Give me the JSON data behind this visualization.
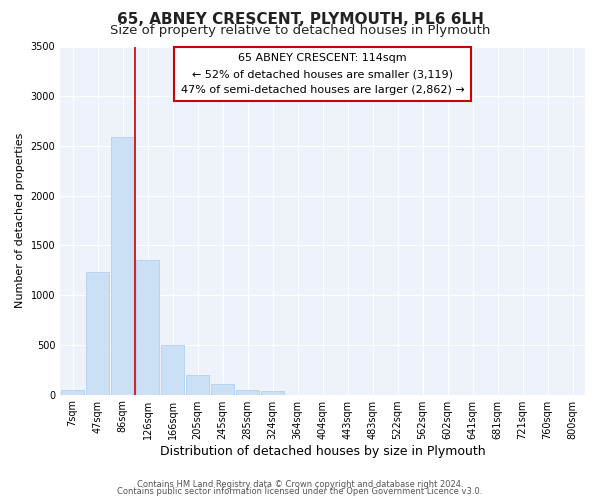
{
  "title": "65, ABNEY CRESCENT, PLYMOUTH, PL6 6LH",
  "subtitle": "Size of property relative to detached houses in Plymouth",
  "xlabel": "Distribution of detached houses by size in Plymouth",
  "ylabel": "Number of detached properties",
  "bar_labels": [
    "7sqm",
    "47sqm",
    "86sqm",
    "126sqm",
    "166sqm",
    "205sqm",
    "245sqm",
    "285sqm",
    "324sqm",
    "364sqm",
    "404sqm",
    "443sqm",
    "483sqm",
    "522sqm",
    "562sqm",
    "602sqm",
    "641sqm",
    "681sqm",
    "721sqm",
    "760sqm",
    "800sqm"
  ],
  "bar_values": [
    50,
    1230,
    2590,
    1350,
    500,
    200,
    110,
    50,
    40,
    0,
    0,
    0,
    0,
    0,
    0,
    0,
    0,
    0,
    0,
    0,
    0
  ],
  "bar_color": "#cce0f5",
  "bar_edge_color": "#aaccee",
  "vline_pos": 2.5,
  "vline_color": "#cc0000",
  "ylim": [
    0,
    3500
  ],
  "yticks": [
    0,
    500,
    1000,
    1500,
    2000,
    2500,
    3000,
    3500
  ],
  "annotation_title": "65 ABNEY CRESCENT: 114sqm",
  "annotation_line1": "← 52% of detached houses are smaller (3,119)",
  "annotation_line2": "47% of semi-detached houses are larger (2,862) →",
  "footer_line1": "Contains HM Land Registry data © Crown copyright and database right 2024.",
  "footer_line2": "Contains public sector information licensed under the Open Government Licence v3.0.",
  "background_color": "#ffffff",
  "plot_bg_color": "#eef2fb",
  "grid_color": "#ffffff",
  "title_fontsize": 11,
  "subtitle_fontsize": 9.5,
  "xlabel_fontsize": 9,
  "ylabel_fontsize": 8,
  "tick_fontsize": 7,
  "annotation_fontsize": 8,
  "annotation_box_edge": "#cc0000",
  "footer_fontsize": 6
}
